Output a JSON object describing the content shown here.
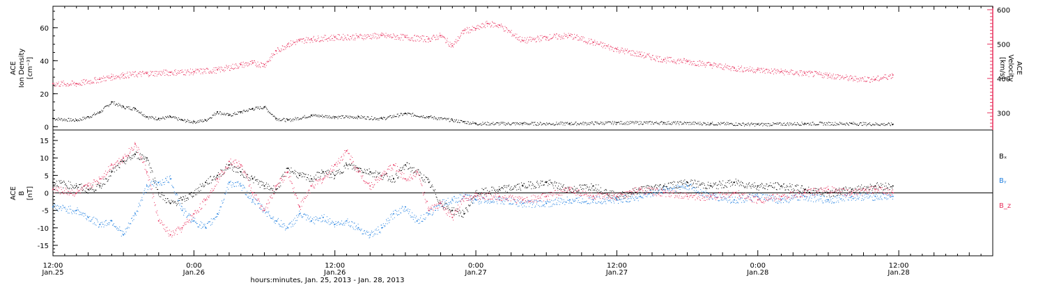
{
  "colors": {
    "black": "#000000",
    "red": "#e8325e",
    "blue": "#1f7fe0"
  },
  "xaxis": {
    "title": "hours:minutes, Jan. 25, 2013 - Jan. 28, 2013",
    "range_hours": [
      0,
      80
    ],
    "ticks": [
      {
        "hour": 0,
        "time": "12:00",
        "date": "Jan.25"
      },
      {
        "hour": 12,
        "time": "0:00",
        "date": "Jan.26"
      },
      {
        "hour": 24,
        "time": "12:00",
        "date": "Jan.26"
      },
      {
        "hour": 36,
        "time": "0:00",
        "date": "Jan.27"
      },
      {
        "hour": 48,
        "time": "12:00",
        "date": "Jan.27"
      },
      {
        "hour": 60,
        "time": "0:00",
        "date": "Jan.28"
      },
      {
        "hour": 72,
        "time": "12:00",
        "date": "Jan.28"
      }
    ]
  },
  "chart_data": [
    {
      "type": "scatter",
      "panel": "top",
      "ylabel_left": [
        "ACE",
        "Ion Density",
        "[cm⁻³]"
      ],
      "ylabel_right": [
        "ACE",
        "Velocity",
        "[km/s]"
      ],
      "ylim_left": [
        -2,
        73
      ],
      "ylim_right": [
        250,
        610
      ],
      "yticks_left": [
        0,
        20,
        40,
        60
      ],
      "yticks_right": [
        300,
        400,
        500,
        600
      ],
      "series": [
        {
          "axis": "left",
          "color": "#000000",
          "x": [
            0,
            2,
            3,
            4,
            5,
            6,
            7,
            8,
            9,
            10,
            11,
            12,
            13,
            14,
            15,
            16,
            17,
            18,
            19,
            20,
            22,
            24,
            26,
            28,
            30,
            32,
            34,
            35,
            36,
            40,
            44,
            48,
            52,
            56,
            60,
            64,
            68,
            71.5
          ],
          "y": [
            5,
            4,
            6,
            9,
            15,
            12,
            11,
            6,
            5,
            6,
            4,
            3,
            4,
            9,
            7,
            9,
            11,
            12,
            5,
            4,
            7,
            6,
            6,
            5,
            8,
            6,
            4,
            3,
            2,
            2,
            2,
            2.5,
            2.5,
            2,
            1.5,
            2,
            2,
            1.5
          ]
        },
        {
          "axis": "right",
          "color": "#e8325e",
          "x": [
            0,
            2,
            4,
            5,
            6,
            8,
            10,
            12,
            14,
            16,
            17,
            18,
            19,
            20,
            21,
            22,
            24,
            26,
            28,
            30,
            32,
            33,
            34,
            35,
            36,
            37,
            38,
            40,
            42,
            44,
            46,
            48,
            50,
            52,
            54,
            56,
            58,
            60,
            62,
            64,
            66,
            68,
            70,
            71.5
          ],
          "y": [
            385,
            385,
            398,
            405,
            410,
            415,
            418,
            420,
            425,
            440,
            445,
            440,
            480,
            500,
            510,
            515,
            520,
            522,
            525,
            520,
            515,
            525,
            495,
            540,
            545,
            560,
            555,
            510,
            520,
            525,
            505,
            485,
            470,
            455,
            450,
            440,
            430,
            425,
            420,
            415,
            410,
            400,
            398,
            410
          ]
        }
      ]
    },
    {
      "type": "scatter",
      "panel": "bottom",
      "ylabel_left": [
        "ACE",
        "B",
        "[nT]"
      ],
      "ylim": [
        -18,
        18
      ],
      "yticks": [
        -15,
        -10,
        -5,
        0,
        5,
        10,
        15
      ],
      "legend": [
        {
          "label": "Bₓ",
          "color": "#000000"
        },
        {
          "label": "Bᵧ",
          "color": "#1f7fe0"
        },
        {
          "label": "B_z",
          "color": "#e8325e"
        }
      ],
      "series": [
        {
          "name": "Bₓ",
          "color": "#000000",
          "x": [
            0,
            2,
            3,
            4,
            5,
            6,
            7,
            8,
            9,
            10,
            11,
            12,
            13,
            14,
            15,
            16,
            17,
            18,
            19,
            20,
            21,
            22,
            23,
            24,
            25,
            26,
            27,
            28,
            29,
            30,
            31,
            32,
            33,
            34,
            35,
            36,
            38,
            40,
            42,
            44,
            46,
            48,
            50,
            52,
            54,
            56,
            58,
            60,
            62,
            64,
            66,
            68,
            70,
            71.5
          ],
          "y": [
            3,
            2,
            1,
            2,
            6,
            9,
            11,
            10,
            0,
            -3,
            -2,
            0,
            3,
            5,
            8,
            6,
            4,
            2,
            1,
            7,
            5,
            4,
            6,
            5,
            8,
            7,
            6,
            5,
            4,
            8,
            6,
            3,
            -3,
            -5,
            -6,
            0,
            1,
            2,
            3,
            1,
            2,
            -1,
            1,
            2,
            3,
            2,
            3,
            2,
            2,
            1,
            0,
            1,
            2,
            2
          ]
        },
        {
          "name": "Bᵧ",
          "color": "#1f7fe0",
          "x": [
            0,
            2,
            3,
            4,
            5,
            6,
            7,
            8,
            9,
            10,
            11,
            12,
            13,
            14,
            15,
            16,
            17,
            18,
            19,
            20,
            21,
            22,
            23,
            24,
            25,
            26,
            27,
            28,
            29,
            30,
            31,
            32,
            33,
            34,
            35,
            36,
            38,
            40,
            42,
            44,
            46,
            48,
            50,
            52,
            54,
            56,
            58,
            60,
            62,
            64,
            66,
            68,
            70,
            71.5
          ],
          "y": [
            -4,
            -5,
            -7,
            -9,
            -8,
            -12,
            -6,
            2,
            3,
            4,
            -5,
            -8,
            -10,
            -6,
            3,
            2,
            -2,
            -5,
            -8,
            -10,
            -6,
            -8,
            -7,
            -9,
            -8,
            -10,
            -12,
            -10,
            -6,
            -4,
            -8,
            -6,
            -3,
            -2,
            -1,
            -2,
            -2,
            -3,
            -3,
            -2,
            -2,
            -2,
            -1,
            1,
            2,
            -1,
            -2,
            -1,
            -2,
            -1,
            -2,
            -1,
            -1,
            -1
          ]
        },
        {
          "name": "B_z",
          "color": "#e8325e",
          "x": [
            0,
            2,
            3,
            4,
            5,
            6,
            7,
            8,
            9,
            10,
            11,
            12,
            13,
            14,
            15,
            16,
            17,
            18,
            19,
            20,
            21,
            22,
            23,
            24,
            25,
            26,
            27,
            28,
            29,
            30,
            31,
            32,
            33,
            34,
            35,
            36,
            38,
            40,
            42,
            44,
            46,
            48,
            50,
            52,
            54,
            56,
            58,
            60,
            62,
            64,
            66,
            68,
            70,
            71.5
          ],
          "y": [
            1,
            0,
            2,
            4,
            8,
            10,
            14,
            6,
            -8,
            -12,
            -10,
            -6,
            -2,
            4,
            9,
            8,
            0,
            -5,
            2,
            6,
            -4,
            2,
            4,
            8,
            12,
            6,
            2,
            5,
            8,
            4,
            6,
            -5,
            -3,
            -7,
            -1,
            -1,
            -1,
            -2,
            -1,
            1,
            -1,
            -1,
            1,
            0,
            -1,
            -1,
            0,
            -2,
            -1,
            0,
            1,
            0,
            1,
            0
          ]
        }
      ]
    }
  ]
}
